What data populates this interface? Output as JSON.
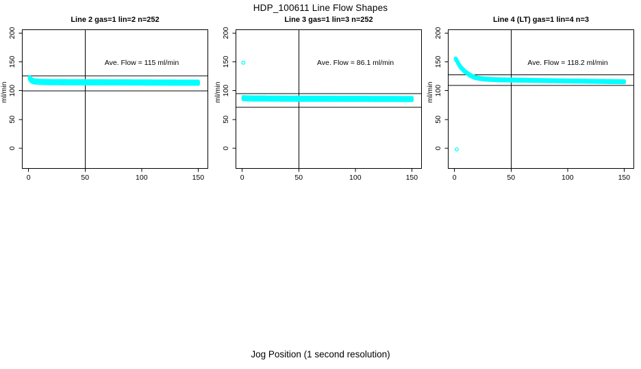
{
  "figure": {
    "title": "HDP_100611  Line Flow Shapes",
    "xlabel": "Jog Position (1 second resolution)",
    "background_color": "#ffffff"
  },
  "chart_data": {
    "type": "scatter",
    "point_color": "#00ffff",
    "point_style": "open-circle",
    "axis_color": "#000000",
    "ylabel": "ml/min",
    "x_ticks": [
      0,
      50,
      100,
      150
    ],
    "y_ticks": [
      0,
      50,
      100,
      150,
      200
    ],
    "xlim": [
      0,
      150
    ],
    "ylim": [
      -35,
      205
    ],
    "panels": [
      {
        "title": "Line 2 gas=1 lin=2 n=252",
        "annotation": "Ave. Flow =  115  ml/min",
        "ave_flow_mlmin": 115,
        "n_runs": 252,
        "vline_x": 50,
        "reference_hlines_mlmin": [
          125.8,
          99.6
        ],
        "band_halfwidth": 2.3,
        "trace": {
          "x_start": 1,
          "x_end": 150,
          "keypoints": [
            [
              1,
              121.5
            ],
            [
              2,
              119
            ],
            [
              3,
              117.5
            ],
            [
              4,
              116.5
            ],
            [
              6,
              115.8
            ],
            [
              10,
              115.2
            ],
            [
              20,
              114.8
            ],
            [
              40,
              114.6
            ],
            [
              80,
              114.3
            ],
            [
              120,
              114.0
            ],
            [
              150,
              113.8
            ]
          ]
        },
        "outliers": []
      },
      {
        "title": "Line 3 gas=1 lin=3 n=252",
        "annotation": "Ave. Flow =  86.1  ml/min",
        "ave_flow_mlmin": 86.1,
        "n_runs": 252,
        "vline_x": 50,
        "reference_hlines_mlmin": [
          94.8,
          71
        ],
        "band_halfwidth": 2.2,
        "trace": {
          "x_start": 1,
          "x_end": 150,
          "keypoints": [
            [
              1,
              87
            ],
            [
              5,
              86.5
            ],
            [
              50,
              86
            ],
            [
              100,
              85.8
            ],
            [
              150,
              85.5
            ]
          ]
        },
        "outliers": [
          [
            1,
            148.5
          ]
        ]
      },
      {
        "title": "Line 4 (LT) gas=1 lin=4 n=3",
        "annotation": "Ave. Flow =  118.2  ml/min",
        "ave_flow_mlmin": 118.2,
        "n_runs": 3,
        "vline_x": 50,
        "reference_hlines_mlmin": [
          127.2,
          109
        ],
        "band_halfwidth": 1.2,
        "trace": {
          "x_start": 1,
          "x_end": 150,
          "keypoints": [
            [
              1,
              155
            ],
            [
              2,
              152
            ],
            [
              3,
              148.5
            ],
            [
              4,
              145
            ],
            [
              5,
              142
            ],
            [
              6,
              139.5
            ],
            [
              7,
              137.5
            ],
            [
              8,
              135.5
            ],
            [
              9,
              133.5
            ],
            [
              10,
              132
            ],
            [
              12,
              129
            ],
            [
              14,
              126.5
            ],
            [
              16,
              124.5
            ],
            [
              18,
              123
            ],
            [
              20,
              122
            ],
            [
              23,
              121
            ],
            [
              26,
              120.3
            ],
            [
              30,
              119.7
            ],
            [
              35,
              119.2
            ],
            [
              40,
              118.8
            ],
            [
              50,
              118.4
            ],
            [
              70,
              117.7
            ],
            [
              100,
              116.8
            ],
            [
              130,
              116
            ],
            [
              150,
              115.5
            ]
          ]
        },
        "outliers": [
          [
            2,
            -2
          ]
        ]
      }
    ]
  }
}
